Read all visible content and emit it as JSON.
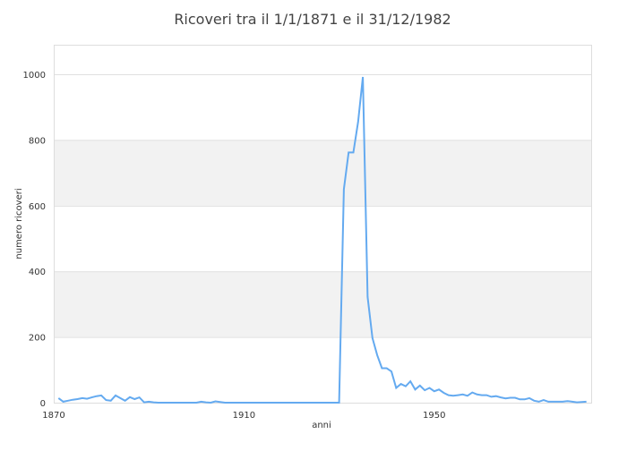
{
  "chart_data": {
    "type": "line",
    "title": "Ricoveri tra il 1/1/1871 e il 31/12/1982",
    "xlabel": "anni",
    "ylabel": "numero ricoveri",
    "xlim": [
      1870,
      1982
    ],
    "ylim": [
      0,
      1090
    ],
    "xticks": [
      1870,
      1910,
      1950
    ],
    "yticks": [
      0,
      200,
      400,
      600,
      800,
      1000
    ],
    "grid": true,
    "line_color": "#64aaf0",
    "band_color": "#f2f2f2",
    "x_start": 1871,
    "values": [
      14,
      3,
      6,
      9,
      11,
      14,
      12,
      16,
      20,
      22,
      8,
      6,
      22,
      14,
      6,
      17,
      11,
      16,
      1,
      3,
      1,
      0,
      0,
      0,
      0,
      0,
      0,
      0,
      0,
      0,
      3,
      1,
      0,
      4,
      2,
      0,
      0,
      0,
      0,
      0,
      0,
      0,
      0,
      0,
      0,
      0,
      0,
      0,
      0,
      0,
      0,
      0,
      0,
      0,
      0,
      0,
      0,
      0,
      0,
      0,
      650,
      762,
      762,
      855,
      992,
      322,
      197,
      145,
      105,
      105,
      95,
      45,
      57,
      50,
      65,
      40,
      52,
      38,
      45,
      35,
      40,
      30,
      23,
      21,
      23,
      25,
      21,
      31,
      25,
      23,
      23,
      18,
      20,
      16,
      13,
      15,
      15,
      10,
      10,
      14,
      6,
      3,
      8,
      3,
      3,
      3,
      3,
      5,
      3,
      1,
      2,
      3
    ]
  }
}
